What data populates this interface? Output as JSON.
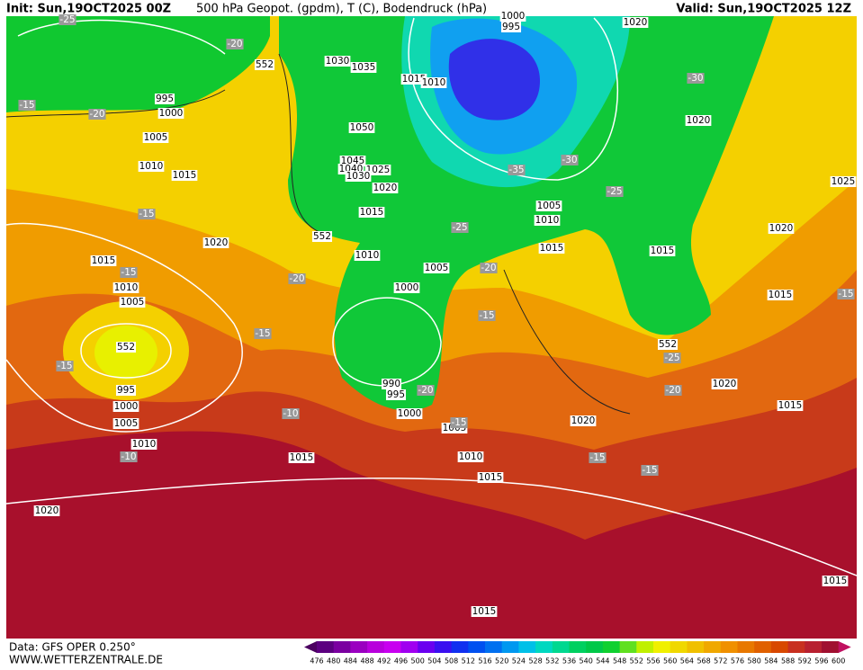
{
  "header": {
    "init": "Init: Sun,19OCT2025 00Z",
    "title": "500 hPa Geopot. (gpdm), T (C), Bodendruck (hPa)",
    "valid": "Valid: Sun,19OCT2025 12Z"
  },
  "map": {
    "pressure_labels": [
      995,
      1000,
      1005,
      1010,
      1015,
      1020,
      1015,
      1010,
      1005,
      995,
      1000,
      1005,
      1010,
      1015,
      1020,
      1030,
      1035,
      1050,
      1045,
      1040,
      1025,
      1030,
      1020,
      1015,
      1010,
      1005,
      1000,
      990,
      995,
      1000,
      1005,
      1010,
      1015,
      1015,
      1010,
      995,
      1000,
      1020,
      1020,
      1005,
      1010,
      1015,
      1015,
      1020,
      1025,
      1015,
      1020,
      1015,
      1020,
      1015,
      1015
    ],
    "temperature_labels": [
      -25,
      -20,
      -15,
      -20,
      -15,
      -15,
      -20,
      -15,
      -15,
      -10,
      -10,
      -25,
      -20,
      -15,
      -20,
      -15,
      -35,
      -30,
      -25,
      -30,
      -25,
      -20,
      -15,
      -15,
      -15
    ],
    "geopotential_labels": [
      552,
      552,
      552,
      552
    ]
  },
  "footer": {
    "data": "Data: GFS OPER 0.250°",
    "site": "WWW.WETTERZENTRALE.DE"
  },
  "colorbar": {
    "labels": [
      476,
      480,
      484,
      488,
      492,
      496,
      500,
      504,
      508,
      512,
      516,
      520,
      524,
      528,
      532,
      536,
      540,
      544,
      548,
      552,
      556,
      560,
      564,
      568,
      572,
      576,
      580,
      584,
      588,
      592,
      596,
      600
    ]
  }
}
